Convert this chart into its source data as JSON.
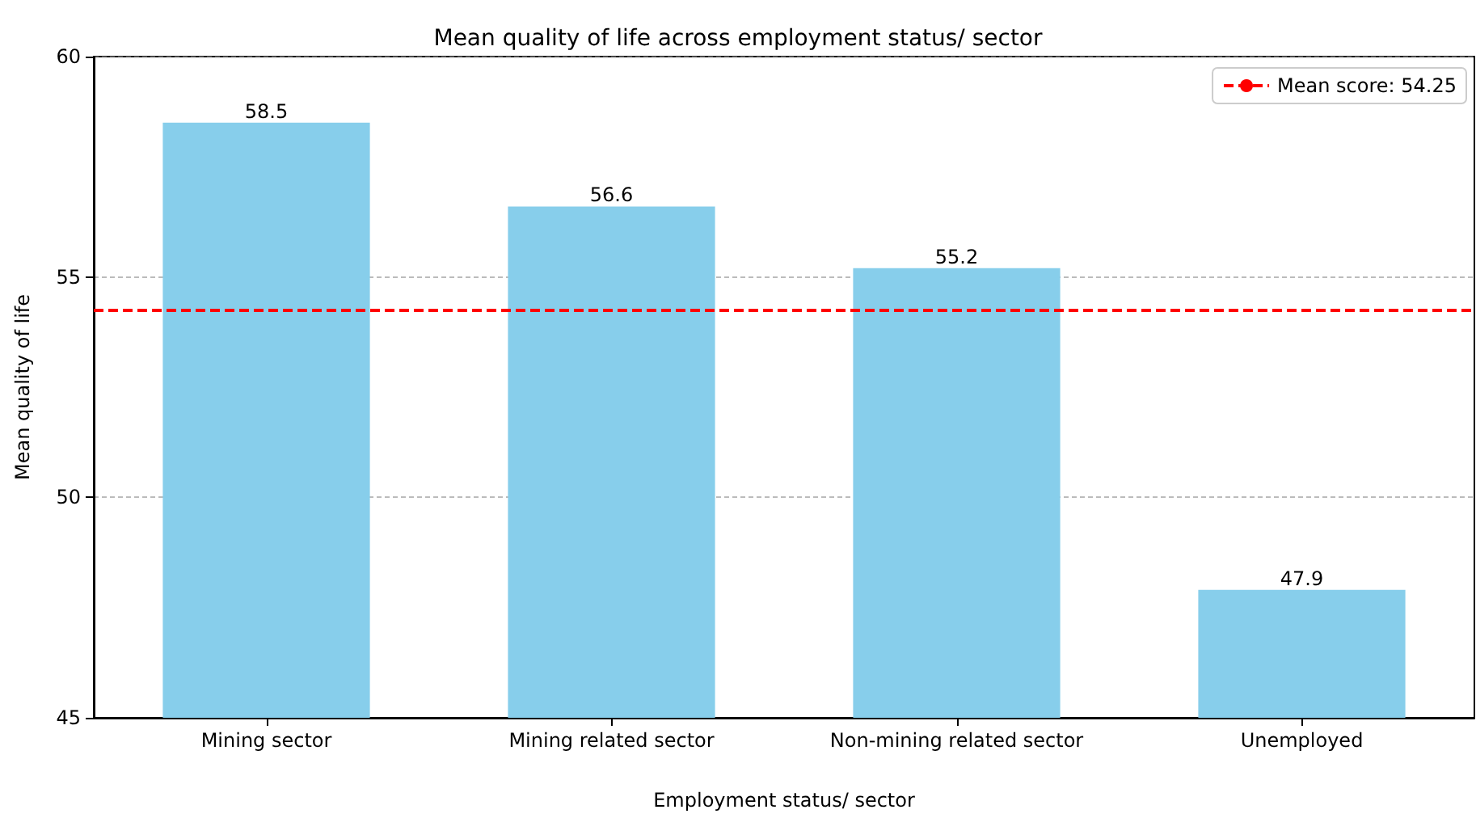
{
  "chart_data": {
    "type": "bar",
    "title": "Mean quality of life across employment status/ sector",
    "xlabel": "Employment status/ sector",
    "ylabel": "Mean quality of life",
    "categories": [
      "Mining sector",
      "Mining related sector",
      "Non-mining related sector",
      "Unemployed"
    ],
    "values": [
      58.5,
      56.6,
      55.2,
      47.9
    ],
    "color": "#87ceeb",
    "ylim": [
      45,
      60
    ],
    "yticks": [
      45,
      50,
      55,
      60
    ],
    "grid": "y",
    "data_labels": true,
    "legend": "top right",
    "ref_lines": [
      {
        "axis": "y",
        "value": 54.25,
        "label": "Mean score: 54.25",
        "color": "#ff0000",
        "line_style": "dashed"
      }
    ]
  }
}
